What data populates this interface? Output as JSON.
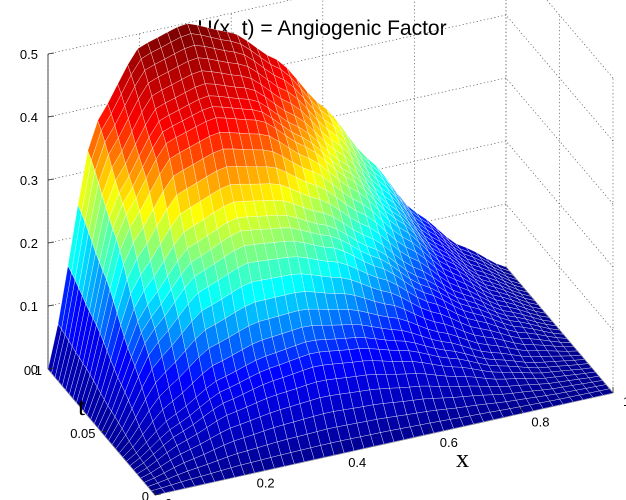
{
  "chart_data": {
    "type": "surface",
    "title": "U(x, t) = Angiogenic Factor",
    "xlabel": "x",
    "ylabel": "t",
    "zlabel": "",
    "xlim": [
      0,
      1
    ],
    "tlim": [
      0,
      0.1
    ],
    "zlim": [
      0,
      0.5
    ],
    "x_ticks": [
      "0",
      "0.2",
      "0.4",
      "0.6",
      "0.8",
      "1"
    ],
    "t_ticks": [
      "0",
      "0.05",
      "0.1"
    ],
    "z_ticks": [
      "0",
      "0.1",
      "0.2",
      "0.3",
      "0.4",
      "0.5"
    ],
    "grid": true,
    "colormap": "jet",
    "colormap_stops": [
      "#00008f",
      "#0000ff",
      "#00ffff",
      "#ffff00",
      "#ff0000",
      "#800000"
    ],
    "x": [
      0,
      0.1,
      0.2,
      0.3,
      0.4,
      0.5,
      0.6,
      0.7,
      0.8,
      0.9,
      1.0
    ],
    "t": [
      0,
      0.025,
      0.05,
      0.075,
      0.1
    ],
    "z": [
      [
        0.0,
        0.0,
        0.0,
        0.0,
        0.0,
        0.0,
        0.0,
        0.0,
        0.0,
        0.0,
        0.0
      ],
      [
        0.0,
        0.05,
        0.09,
        0.11,
        0.12,
        0.11,
        0.09,
        0.06,
        0.03,
        0.01,
        0.0
      ],
      [
        0.0,
        0.16,
        0.24,
        0.27,
        0.26,
        0.23,
        0.18,
        0.12,
        0.07,
        0.03,
        0.0
      ],
      [
        0.0,
        0.28,
        0.39,
        0.41,
        0.39,
        0.33,
        0.26,
        0.18,
        0.1,
        0.04,
        0.0
      ],
      [
        0.0,
        0.37,
        0.48,
        0.5,
        0.47,
        0.41,
        0.32,
        0.22,
        0.12,
        0.05,
        0.0
      ]
    ]
  }
}
